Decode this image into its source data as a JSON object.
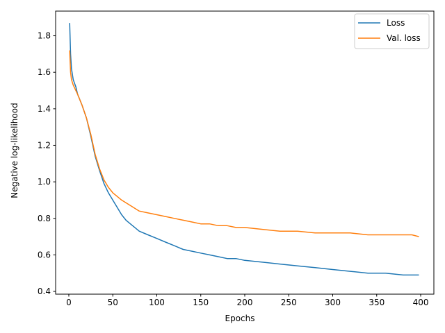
{
  "chart_data": {
    "type": "line",
    "title": "",
    "xlabel": "Epochs",
    "ylabel": "Negative log-likelihood",
    "xlim": [
      -15,
      415
    ],
    "ylim": [
      0.385,
      1.935
    ],
    "xticks": [
      0,
      50,
      100,
      150,
      200,
      250,
      300,
      350,
      400
    ],
    "yticks": [
      0.4,
      0.6,
      0.8,
      1.0,
      1.2,
      1.4,
      1.6,
      1.8
    ],
    "ytick_labels": [
      "0.4",
      "0.6",
      "0.8",
      "1.0",
      "1.2",
      "1.4",
      "1.6",
      "1.8"
    ],
    "grid": false,
    "legend_position": "top-right",
    "series": [
      {
        "name": "Loss",
        "color": "#1f77b4",
        "x": [
          1,
          2,
          3,
          5,
          8,
          10,
          15,
          20,
          25,
          30,
          35,
          40,
          45,
          50,
          55,
          60,
          65,
          70,
          75,
          80,
          90,
          100,
          110,
          120,
          130,
          140,
          150,
          160,
          170,
          180,
          190,
          200,
          220,
          240,
          260,
          280,
          300,
          320,
          340,
          360,
          380,
          390,
          398
        ],
        "y": [
          1.87,
          1.7,
          1.62,
          1.56,
          1.52,
          1.48,
          1.42,
          1.35,
          1.25,
          1.14,
          1.06,
          0.99,
          0.94,
          0.9,
          0.86,
          0.82,
          0.79,
          0.77,
          0.75,
          0.73,
          0.71,
          0.69,
          0.67,
          0.65,
          0.63,
          0.62,
          0.61,
          0.6,
          0.59,
          0.58,
          0.58,
          0.57,
          0.56,
          0.55,
          0.54,
          0.53,
          0.52,
          0.51,
          0.5,
          0.5,
          0.49,
          0.49,
          0.49
        ]
      },
      {
        "name": "Val. loss",
        "color": "#ff7f0e",
        "x": [
          1,
          2,
          3,
          5,
          8,
          10,
          15,
          20,
          25,
          30,
          35,
          40,
          45,
          50,
          55,
          60,
          70,
          80,
          90,
          100,
          110,
          120,
          130,
          140,
          150,
          160,
          170,
          180,
          190,
          200,
          220,
          240,
          260,
          280,
          300,
          320,
          340,
          360,
          380,
          390,
          398
        ],
        "y": [
          1.72,
          1.6,
          1.56,
          1.53,
          1.5,
          1.48,
          1.42,
          1.35,
          1.26,
          1.15,
          1.07,
          1.01,
          0.97,
          0.94,
          0.92,
          0.9,
          0.87,
          0.84,
          0.83,
          0.82,
          0.81,
          0.8,
          0.79,
          0.78,
          0.77,
          0.77,
          0.76,
          0.76,
          0.75,
          0.75,
          0.74,
          0.73,
          0.73,
          0.72,
          0.72,
          0.72,
          0.71,
          0.71,
          0.71,
          0.71,
          0.7
        ]
      }
    ]
  }
}
